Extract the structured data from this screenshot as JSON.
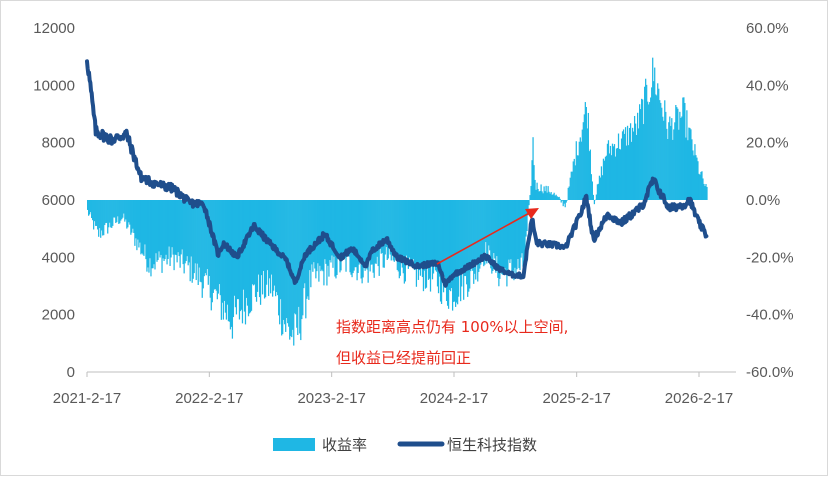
{
  "chart_data": {
    "type": "bar+line",
    "title": "",
    "x_ticks": [
      "2021-2-17",
      "2022-2-17",
      "2023-2-17",
      "2024-2-17",
      "2025-2-17",
      "2026-2-17"
    ],
    "y_left": {
      "ticks": [
        "0",
        "2000",
        "4000",
        "6000",
        "8000",
        "10000",
        "12000"
      ],
      "range": [
        0,
        12000
      ]
    },
    "y_right": {
      "ticks": [
        "-60.0%",
        "-40.0%",
        "-20.0%",
        "0.0%",
        "20.0%",
        "40.0%",
        "60.0%"
      ],
      "range": [
        -60,
        60
      ]
    },
    "annotation": {
      "line1": "指数距离高点仍有 100%以上空间,",
      "line2": "但收益已经提前回正"
    },
    "series": [
      {
        "name": "收益率",
        "kind": "bar",
        "axis": "right",
        "color": "#1fb7e4",
        "keypoints": [
          [
            "2021-02-17",
            -4
          ],
          [
            "2021-03-20",
            -12
          ],
          [
            "2021-06-01",
            -6
          ],
          [
            "2021-08-20",
            -22
          ],
          [
            "2021-11-01",
            -20
          ],
          [
            "2022-01-01",
            -25
          ],
          [
            "2022-03-15",
            -35
          ],
          [
            "2022-04-25",
            -42
          ],
          [
            "2022-07-01",
            -32
          ],
          [
            "2022-08-20",
            -30
          ],
          [
            "2022-10-05",
            -45
          ],
          [
            "2022-10-31",
            -48
          ],
          [
            "2022-12-15",
            -28
          ],
          [
            "2023-01-27",
            -25
          ],
          [
            "2023-04-01",
            -22
          ],
          [
            "2023-06-01",
            -25
          ],
          [
            "2023-08-01",
            -20
          ],
          [
            "2023-10-15",
            -26
          ],
          [
            "2023-12-15",
            -27
          ],
          [
            "2024-01-22",
            -32
          ],
          [
            "2024-02-10",
            -33
          ],
          [
            "2024-04-15",
            -26
          ],
          [
            "2024-05-20",
            -18
          ],
          [
            "2024-06-30",
            -26
          ],
          [
            "2024-09-11",
            -23
          ],
          [
            "2024-09-30",
            2
          ],
          [
            "2024-10-08",
            20
          ],
          [
            "2024-10-15",
            5
          ],
          [
            "2024-12-01",
            3
          ],
          [
            "2025-01-13",
            -2
          ],
          [
            "2025-02-10",
            15
          ],
          [
            "2025-03-18",
            33
          ],
          [
            "2025-04-08",
            -1
          ],
          [
            "2025-05-15",
            17
          ],
          [
            "2025-07-01",
            21
          ],
          [
            "2025-08-15",
            26
          ],
          [
            "2025-10-03",
            44
          ],
          [
            "2025-11-15",
            25
          ],
          [
            "2026-01-01",
            30
          ],
          [
            "2026-02-17",
            10
          ],
          [
            "2026-03-12",
            3
          ]
        ]
      },
      {
        "name": "恒生科技指数",
        "kind": "line",
        "axis": "left",
        "color": "#1f4e8c",
        "keypoints": [
          [
            "2021-02-17",
            10950
          ],
          [
            "2021-03-15",
            8400
          ],
          [
            "2021-05-01",
            8100
          ],
          [
            "2021-06-15",
            8300
          ],
          [
            "2021-07-28",
            6800
          ],
          [
            "2021-09-01",
            6600
          ],
          [
            "2021-11-01",
            6400
          ],
          [
            "2021-12-20",
            5900
          ],
          [
            "2022-02-01",
            5850
          ],
          [
            "2022-03-15",
            4100
          ],
          [
            "2022-04-01",
            4500
          ],
          [
            "2022-05-10",
            4000
          ],
          [
            "2022-06-30",
            5100
          ],
          [
            "2022-08-15",
            4500
          ],
          [
            "2022-10-05",
            3900
          ],
          [
            "2022-10-31",
            3100
          ],
          [
            "2022-11-30",
            4100
          ],
          [
            "2023-01-27",
            4800
          ],
          [
            "2023-03-15",
            4000
          ],
          [
            "2023-04-20",
            4300
          ],
          [
            "2023-05-31",
            3700
          ],
          [
            "2023-06-16",
            4200
          ],
          [
            "2023-07-31",
            4650
          ],
          [
            "2023-08-31",
            4000
          ],
          [
            "2023-10-31",
            3700
          ],
          [
            "2023-12-31",
            3800
          ],
          [
            "2024-01-22",
            3050
          ],
          [
            "2024-02-15",
            3400
          ],
          [
            "2024-03-20",
            3600
          ],
          [
            "2024-05-20",
            4050
          ],
          [
            "2024-06-30",
            3600
          ],
          [
            "2024-08-05",
            3400
          ],
          [
            "2024-09-11",
            3350
          ],
          [
            "2024-09-25",
            4500
          ],
          [
            "2024-10-07",
            5350
          ],
          [
            "2024-10-20",
            4500
          ],
          [
            "2024-12-31",
            4400
          ],
          [
            "2025-01-13",
            4300
          ],
          [
            "2025-02-28",
            5500
          ],
          [
            "2025-03-18",
            6100
          ],
          [
            "2025-04-08",
            4600
          ],
          [
            "2025-05-20",
            5500
          ],
          [
            "2025-06-30",
            5200
          ],
          [
            "2025-08-01",
            5500
          ],
          [
            "2025-09-01",
            5800
          ],
          [
            "2025-10-03",
            6700
          ],
          [
            "2025-11-20",
            5700
          ],
          [
            "2026-01-05",
            5850
          ],
          [
            "2026-01-20",
            6000
          ],
          [
            "2026-02-17",
            5200
          ],
          [
            "2026-03-12",
            4750
          ]
        ]
      }
    ],
    "legend": {
      "position": "bottom-center"
    }
  }
}
